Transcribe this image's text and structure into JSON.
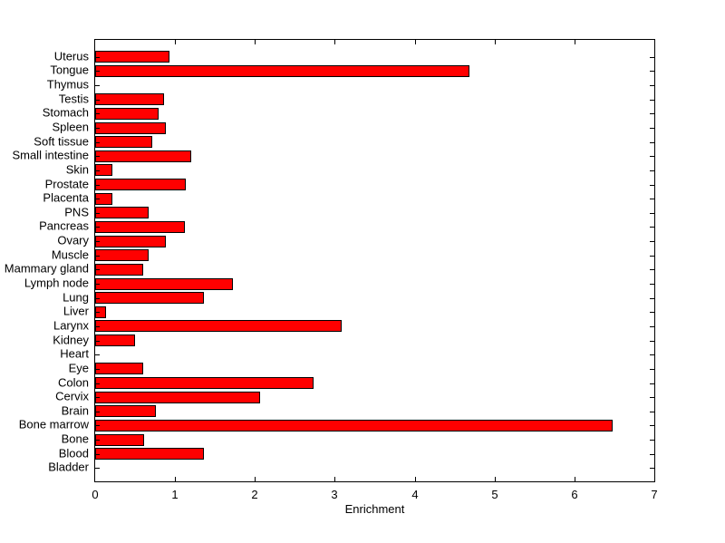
{
  "chart_data": {
    "type": "bar",
    "orientation": "horizontal",
    "title": "",
    "xlabel": "Enrichment",
    "ylabel": "",
    "xlim": [
      0,
      7
    ],
    "x_ticks": [
      "0",
      "1",
      "2",
      "3",
      "4",
      "5",
      "6",
      "7"
    ],
    "grid": false,
    "legend": "none",
    "bar_color": "#ff0000",
    "bar_edge_color": "#000000",
    "categories": [
      "Uterus",
      "Tongue",
      "Thymus",
      "Testis",
      "Stomach",
      "Spleen",
      "Soft tissue",
      "Small intestine",
      "Skin",
      "Prostate",
      "Placenta",
      "PNS",
      "Pancreas",
      "Ovary",
      "Muscle",
      "Mammary gland",
      "Lymph node",
      "Lung",
      "Liver",
      "Larynx",
      "Kidney",
      "Heart",
      "Eye",
      "Colon",
      "Cervix",
      "Brain",
      "Bone marrow",
      "Bone",
      "Blood",
      "Bladder"
    ],
    "values": [
      0.93,
      4.69,
      0,
      0.86,
      0.79,
      0.88,
      0.71,
      1.2,
      0.21,
      1.14,
      0.21,
      0.67,
      1.12,
      0.89,
      0.67,
      0.6,
      1.72,
      1.36,
      0.14,
      3.09,
      0.5,
      0,
      0.6,
      2.73,
      2.06,
      0.76,
      6.48,
      0.61,
      1.36,
      0
    ]
  }
}
